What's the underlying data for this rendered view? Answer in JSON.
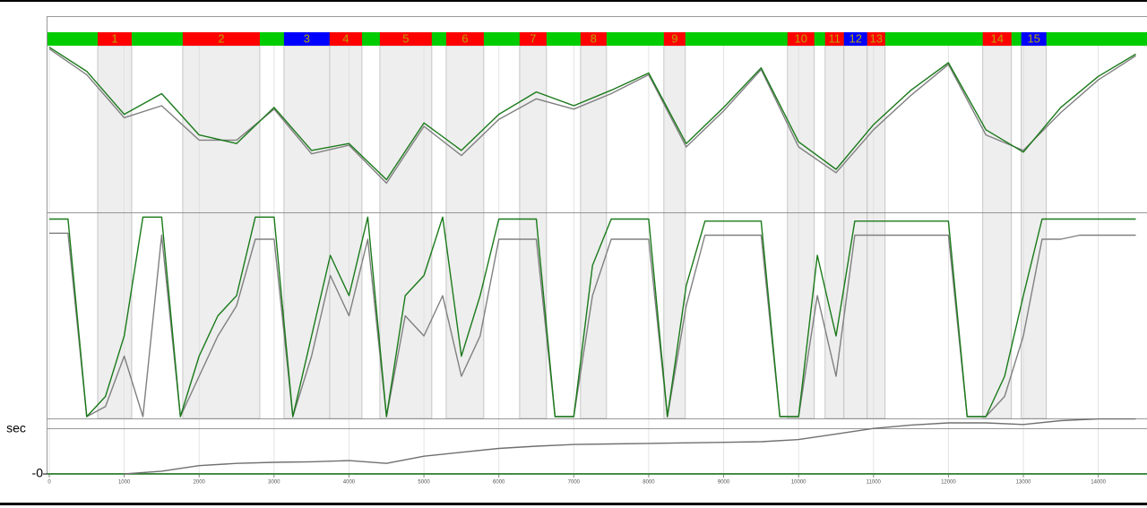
{
  "chart_data": [
    {
      "type": "line",
      "xlim": [
        0,
        14650
      ],
      "ylim": [
        0,
        100
      ],
      "sections": [
        {
          "label": "1",
          "color": "#ff0000",
          "start": 646,
          "end": 1100
        },
        {
          "label": "2",
          "color": "#ff0000",
          "start": 1781,
          "end": 2810
        },
        {
          "label": "3",
          "color": "#0000ff",
          "start": 3132,
          "end": 3742
        },
        {
          "label": "4",
          "color": "#ff0000",
          "start": 3742,
          "end": 4173
        },
        {
          "label": "5",
          "color": "#ff0000",
          "start": 4412,
          "end": 5105
        },
        {
          "label": "6",
          "color": "#ff0000",
          "start": 5297,
          "end": 5799
        },
        {
          "label": "7",
          "color": "#ff0000",
          "start": 6277,
          "end": 6636
        },
        {
          "label": "8",
          "color": "#ff0000",
          "start": 7090,
          "end": 7437
        },
        {
          "label": "9",
          "color": "#ff0000",
          "start": 8202,
          "end": 8489
        },
        {
          "label": "10",
          "color": "#ff0000",
          "start": 9852,
          "end": 10210
        },
        {
          "label": "11",
          "color": "#ff0000",
          "start": 10354,
          "end": 10605
        },
        {
          "label": "12",
          "color": "#0000ff",
          "start": 10605,
          "end": 10916
        },
        {
          "label": "13",
          "color": "#ff0000",
          "start": 10916,
          "end": 11155
        },
        {
          "label": "14",
          "color": "#ff0000",
          "start": 12458,
          "end": 12841
        },
        {
          "label": "15",
          "color": "#0000ff",
          "start": 12972,
          "end": 13307
        }
      ],
      "x": [
        0,
        500,
        1000,
        1500,
        2000,
        2500,
        3000,
        3500,
        4000,
        4500,
        5000,
        5500,
        6000,
        6500,
        7000,
        7500,
        8000,
        8500,
        9000,
        9500,
        10000,
        10500,
        11000,
        11500,
        12000,
        12500,
        13000,
        13500,
        14000,
        14500
      ],
      "series": [
        {
          "color": "#808080",
          "values": [
            95,
            80,
            55,
            62,
            42,
            42,
            60,
            34,
            39,
            17,
            50,
            33,
            54,
            66,
            60,
            69,
            80,
            38,
            59,
            83,
            38,
            23,
            48,
            68,
            86,
            45,
            36,
            58,
            77,
            91
          ]
        },
        {
          "color": "#1a7a1a",
          "values": [
            96,
            82,
            57,
            69,
            45,
            40,
            61,
            36,
            40,
            19,
            52,
            36,
            57,
            70,
            62,
            71,
            81,
            40,
            61,
            84,
            41,
            25,
            51,
            71,
            87,
            48,
            35,
            61,
            79,
            92
          ]
        }
      ]
    },
    {
      "type": "line",
      "xlim": [
        0,
        14650
      ],
      "ylim": [
        0,
        100
      ],
      "x": [
        0,
        250,
        500,
        750,
        1000,
        1250,
        1500,
        1750,
        2000,
        2250,
        2500,
        2750,
        3000,
        3250,
        3500,
        3750,
        4000,
        4250,
        4500,
        4750,
        5000,
        5250,
        5500,
        5750,
        6000,
        6250,
        6500,
        6750,
        7000,
        7250,
        7500,
        7750,
        8000,
        8250,
        8500,
        8750,
        9000,
        9250,
        9500,
        9750,
        10000,
        10250,
        10500,
        10750,
        11000,
        11250,
        11500,
        11750,
        12000,
        12250,
        12500,
        12750,
        13000,
        13250,
        13500,
        13750,
        14000,
        14250,
        14500
      ],
      "series": [
        {
          "color": "#808080",
          "values": [
            91,
            91,
            0,
            5,
            30,
            0,
            90,
            0,
            20,
            40,
            55,
            88,
            88,
            0,
            30,
            70,
            50,
            88,
            0,
            50,
            40,
            60,
            20,
            40,
            88,
            88,
            88,
            0,
            0,
            60,
            88,
            88,
            88,
            0,
            55,
            90,
            90,
            90,
            90,
            0,
            0,
            60,
            20,
            90,
            90,
            90,
            90,
            90,
            90,
            0,
            0,
            10,
            40,
            88,
            88,
            90,
            90,
            90,
            90
          ]
        },
        {
          "color": "#1a7a1a",
          "values": [
            98,
            98,
            0,
            10,
            40,
            99,
            99,
            0,
            30,
            50,
            60,
            99,
            99,
            0,
            40,
            80,
            60,
            99,
            0,
            60,
            70,
            99,
            30,
            60,
            98,
            98,
            98,
            0,
            0,
            75,
            98,
            98,
            98,
            0,
            65,
            97,
            97,
            97,
            97,
            0,
            0,
            80,
            40,
            97,
            97,
            97,
            97,
            97,
            97,
            0,
            0,
            20,
            60,
            98,
            98,
            98,
            98,
            98,
            98
          ]
        }
      ]
    },
    {
      "type": "line",
      "ylabel": "sec",
      "xlim": [
        0,
        14650
      ],
      "ylim": [
        0,
        1
      ],
      "yticks": [
        {
          "value": 0,
          "label": "-0"
        }
      ],
      "xticks": [
        0,
        1000,
        2000,
        3000,
        4000,
        5000,
        6000,
        7000,
        8000,
        9000,
        10000,
        11000,
        12000,
        13000,
        14000
      ],
      "x": [
        0,
        500,
        1000,
        1500,
        2000,
        2500,
        3000,
        3500,
        4000,
        4500,
        5000,
        5500,
        6000,
        6500,
        7000,
        7500,
        8000,
        8500,
        9000,
        9500,
        10000,
        10500,
        11000,
        11500,
        12000,
        12500,
        13000,
        13500,
        14000,
        14500
      ],
      "series": [
        {
          "color": "#707070",
          "values": [
            null,
            null,
            0,
            0.05,
            0.15,
            0.19,
            0.21,
            0.22,
            0.24,
            0.19,
            0.32,
            0.39,
            0.46,
            0.5,
            0.53,
            0.54,
            0.55,
            0.56,
            0.57,
            0.58,
            0.62,
            0.72,
            0.82,
            0.88,
            0.92,
            0.92,
            0.89,
            0.96,
            0.99,
            0.99
          ]
        }
      ]
    }
  ]
}
